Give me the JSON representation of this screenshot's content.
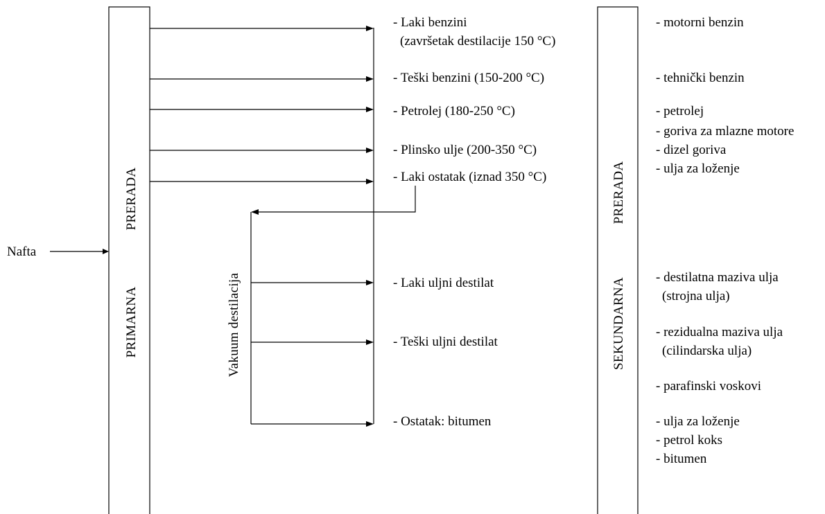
{
  "input_label": "Nafta",
  "primary": {
    "line1": "PRIMARNA",
    "line2": "PRERADA"
  },
  "secondary": {
    "line1": "SEKUNDARNA",
    "line2": "PRERADA"
  },
  "vacuum_label": "Vakuum destilacija",
  "primary_products": [
    "- Laki benzini",
    "(završetak destilacije 150 °C)",
    "- Teški benzini (150-200 °C)",
    "- Petrolej (180-250 °C)",
    "- Plinsko ulje (200-350 °C)",
    "- Laki ostatak (iznad 350 °C)"
  ],
  "vacuum_products": [
    "- Laki uljni destilat",
    "- Teški uljni destilat",
    "- Ostatak: bitumen"
  ],
  "final_products": [
    "- motorni benzin",
    "- tehnički benzin",
    "- petrolej",
    "- goriva za mlazne motore",
    "- dizel goriva",
    "- ulja za loženje",
    "- destilatna maziva ulja",
    "(strojna ulja)",
    "- rezidualna maziva ulja",
    "(cilindarska ulja)",
    "- parafinski voskovi",
    "- ulja za loženje",
    "- petrol koks",
    "- bitumen"
  ],
  "colors": {
    "line": "#000000",
    "text": "#000000",
    "background": "#ffffff"
  }
}
